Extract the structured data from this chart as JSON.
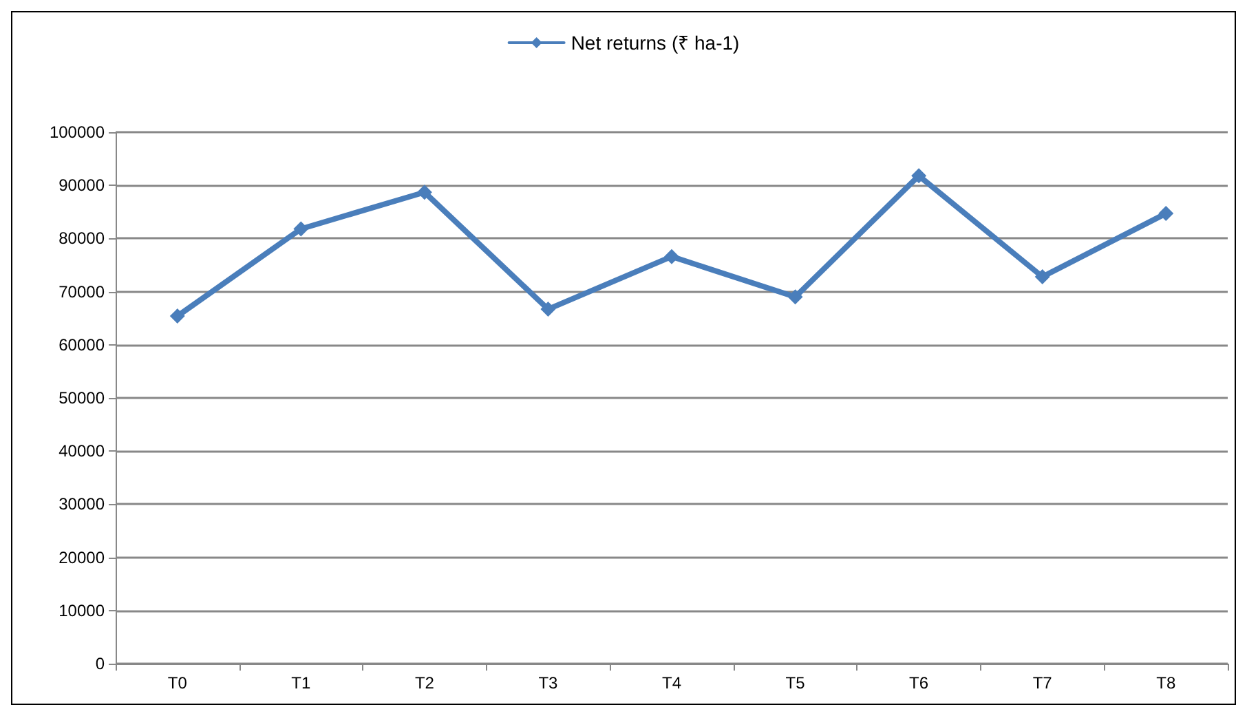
{
  "chart_data": {
    "type": "line",
    "categories": [
      "T0",
      "T1",
      "T2",
      "T3",
      "T4",
      "T5",
      "T6",
      "T7",
      "T8"
    ],
    "series": [
      {
        "name": "Net returns (₹ ha-1)",
        "color": "#4a7ebb",
        "values": [
          65400,
          81800,
          88700,
          66700,
          76600,
          69000,
          91800,
          72800,
          84700
        ]
      }
    ],
    "ylim": [
      0,
      100000
    ],
    "yticks": [
      0,
      10000,
      20000,
      30000,
      40000,
      50000,
      60000,
      70000,
      80000,
      90000,
      100000
    ],
    "grid": "y",
    "legend": "top",
    "marker": "diamond",
    "line_style": "solid"
  }
}
